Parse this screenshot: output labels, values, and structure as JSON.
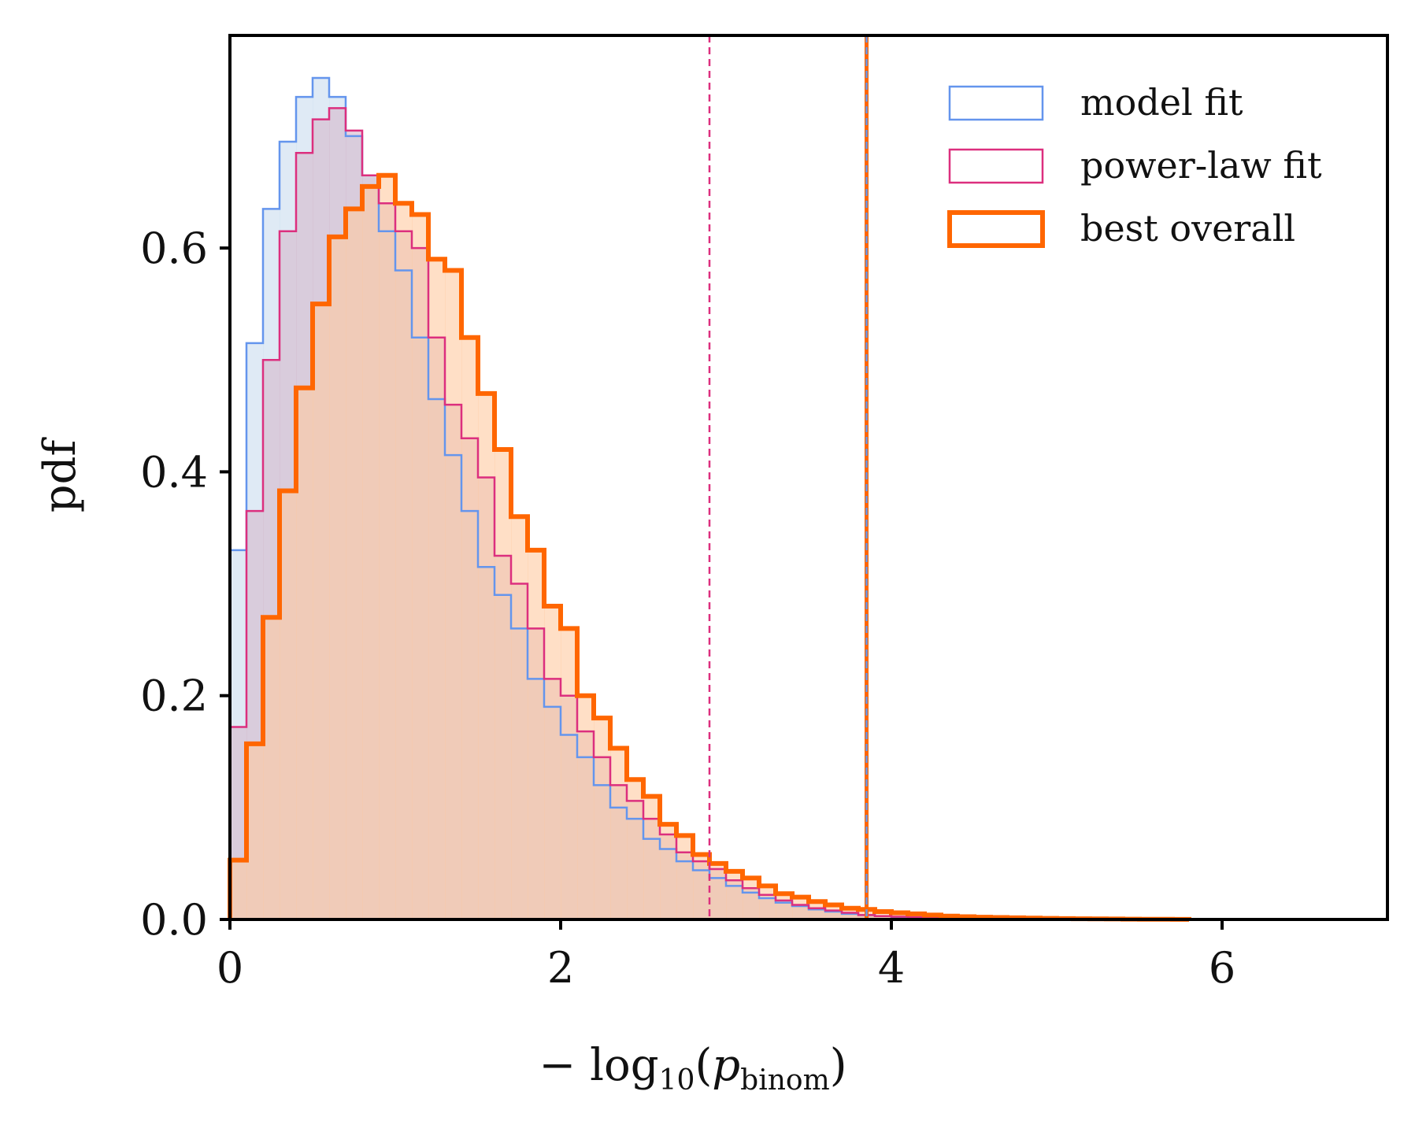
{
  "chart_data": {
    "type": "histogram",
    "title": "",
    "xlabel": "− log10(p_binom)",
    "xlabel_parts": {
      "prefix": "− log",
      "sub10": "10",
      "open": "(",
      "p": "p",
      "subscript": "binom",
      "close": ")"
    },
    "ylabel": "pdf",
    "xlim": [
      0,
      7
    ],
    "ylim": [
      0,
      0.79
    ],
    "xticks": [
      0,
      2,
      4,
      6
    ],
    "xtick_labels": [
      "0",
      "2",
      "4",
      "6"
    ],
    "yticks": [
      0.0,
      0.2,
      0.4,
      0.6
    ],
    "ytick_labels": [
      "0.0",
      "0.2",
      "0.4",
      "0.6"
    ],
    "grid": false,
    "legend_position": "top-right",
    "bin_start": 0.0,
    "bin_width": 0.1,
    "series": [
      {
        "name": "model fit",
        "color": "#6495ed",
        "fill": "#c5d8ec",
        "values": [
          0.33,
          0.515,
          0.635,
          0.695,
          0.735,
          0.752,
          0.735,
          0.7,
          0.665,
          0.615,
          0.58,
          0.52,
          0.465,
          0.415,
          0.365,
          0.315,
          0.29,
          0.26,
          0.215,
          0.19,
          0.165,
          0.145,
          0.12,
          0.1,
          0.09,
          0.072,
          0.063,
          0.052,
          0.044,
          0.037,
          0.03,
          0.024,
          0.019,
          0.015,
          0.012,
          0.009,
          0.007,
          0.005,
          0.004,
          0.003,
          0.002,
          0.0015,
          0.001,
          0.0008,
          0.0005,
          0.0004,
          0.0003,
          0.0002,
          0.0002,
          0.0001
        ]
      },
      {
        "name": "power-law fit",
        "color": "#dc2f7e",
        "fill": "#d6b8cc",
        "values": [
          0.172,
          0.365,
          0.5,
          0.615,
          0.685,
          0.715,
          0.725,
          0.705,
          0.665,
          0.64,
          0.615,
          0.6,
          0.52,
          0.46,
          0.43,
          0.395,
          0.325,
          0.3,
          0.26,
          0.215,
          0.2,
          0.168,
          0.145,
          0.12,
          0.106,
          0.09,
          0.076,
          0.06,
          0.052,
          0.045,
          0.035,
          0.028,
          0.022,
          0.017,
          0.013,
          0.01,
          0.008,
          0.006,
          0.004,
          0.003,
          0.0025,
          0.002,
          0.0015,
          0.001,
          0.0008,
          0.0006,
          0.0004,
          0.0003,
          0.0002,
          0.0001
        ]
      },
      {
        "name": "best overall",
        "color": "#ff6600",
        "fill": "#ffcaa0",
        "values": [
          0.053,
          0.157,
          0.27,
          0.383,
          0.475,
          0.55,
          0.61,
          0.635,
          0.655,
          0.665,
          0.64,
          0.63,
          0.59,
          0.58,
          0.52,
          0.47,
          0.42,
          0.36,
          0.33,
          0.28,
          0.26,
          0.2,
          0.18,
          0.153,
          0.125,
          0.11,
          0.085,
          0.075,
          0.058,
          0.05,
          0.043,
          0.037,
          0.03,
          0.023,
          0.02,
          0.016,
          0.013,
          0.01,
          0.009,
          0.007,
          0.006,
          0.005,
          0.004,
          0.003,
          0.0025,
          0.002,
          0.0018,
          0.0015,
          0.0012,
          0.001,
          0.0008,
          0.0006,
          0.0005,
          0.0004,
          0.0003,
          0.0002,
          0.0002,
          0.0001
        ]
      }
    ],
    "vlines": [
      {
        "name": "power-law threshold",
        "x": 2.9,
        "color": "#dc2f7e",
        "style": "dashed"
      },
      {
        "name": "best overall threshold",
        "x": 3.85,
        "color": "#ff6600",
        "style": "solid"
      },
      {
        "name": "model fit threshold",
        "x": 3.85,
        "color": "#6495ed",
        "style": "dashed"
      }
    ]
  }
}
